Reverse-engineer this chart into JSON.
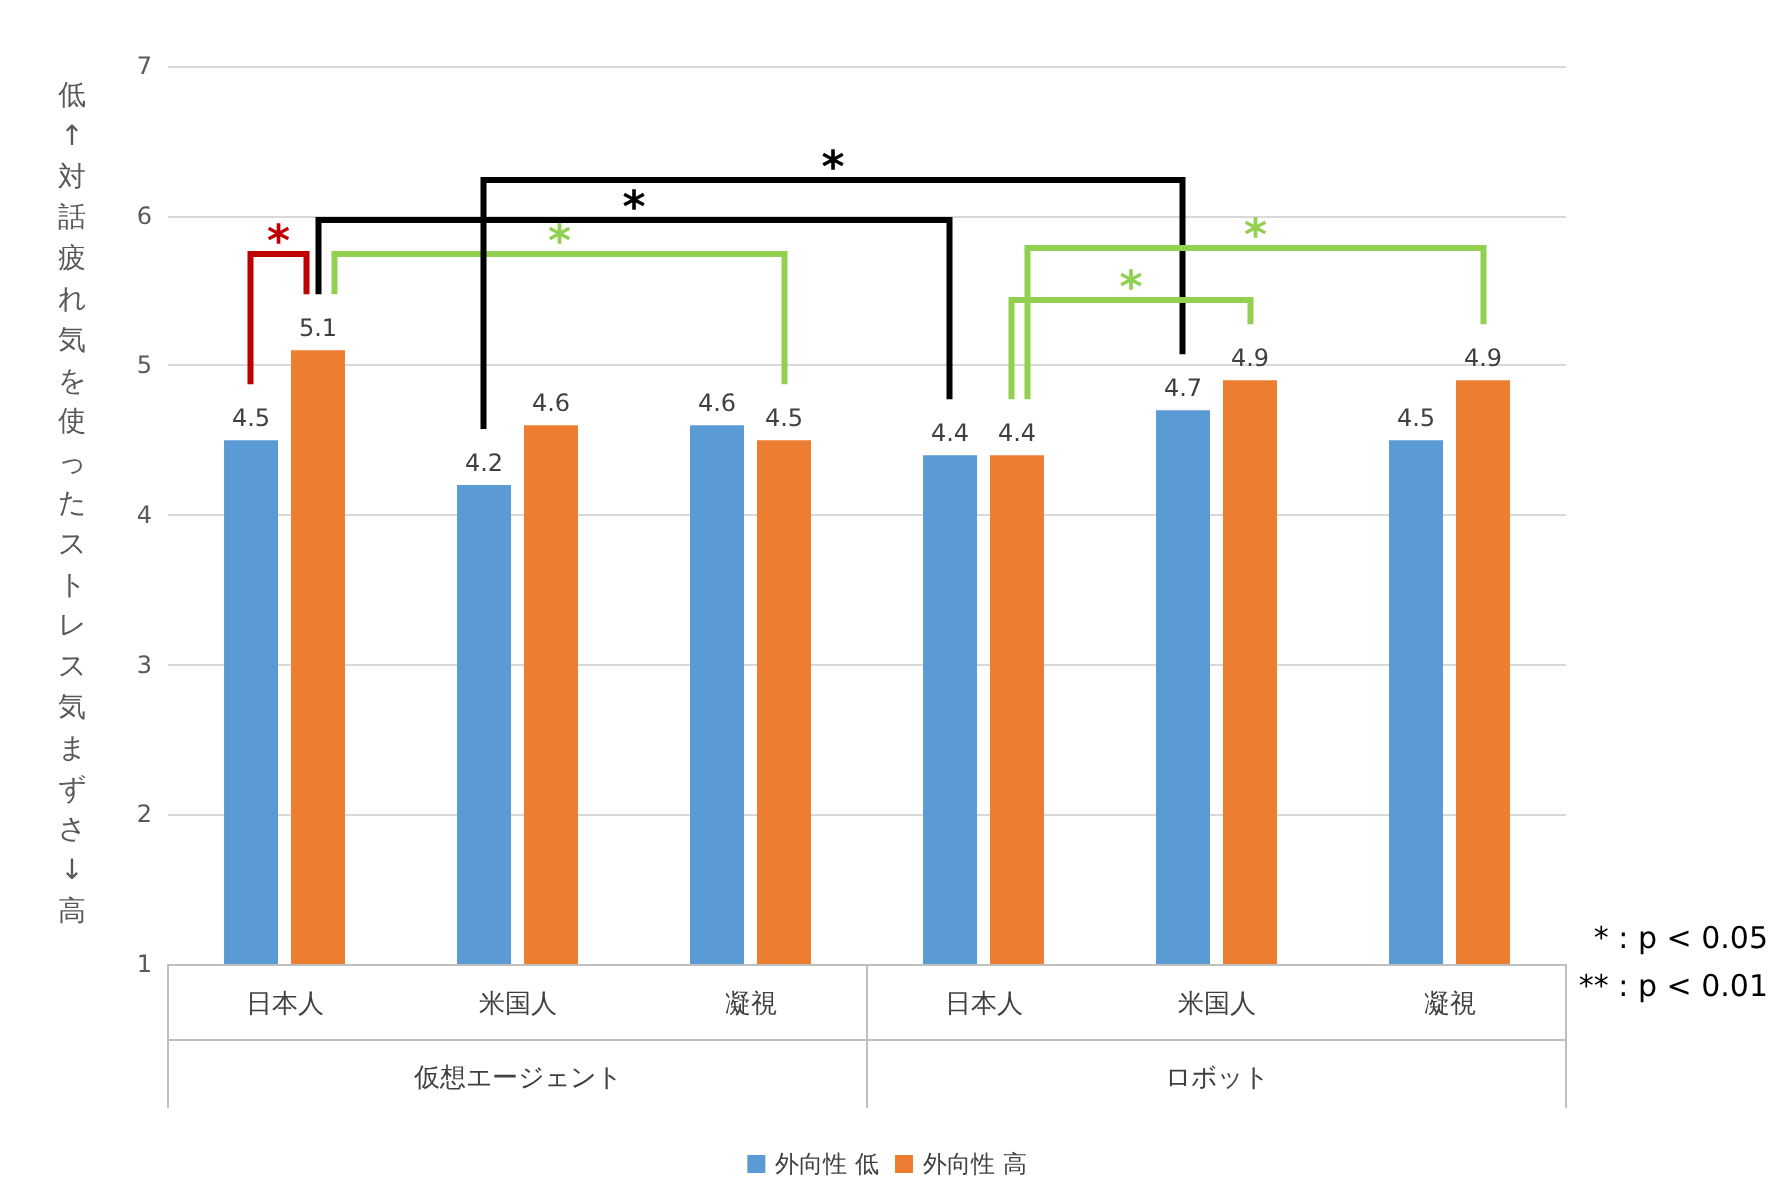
{
  "chart_data": {
    "type": "bar",
    "ylabel": "低↑対話疲れ気を使ったストレス気まずさ↓高",
    "categories": [
      "日本人",
      "米国人",
      "凝視",
      "日本人",
      "米国人",
      "凝視"
    ],
    "series": [
      {
        "name": "外向性 低",
        "color": "#5b9bd5",
        "values": [
          4.5,
          4.2,
          4.6,
          4.4,
          4.7,
          4.5
        ]
      },
      {
        "name": "外向性 高",
        "color": "#ed7d31",
        "values": [
          5.1,
          4.6,
          4.5,
          4.4,
          4.9,
          4.9
        ]
      }
    ],
    "ylim": [
      1,
      7
    ],
    "yticks": [
      1,
      2,
      3,
      4,
      5,
      6,
      7
    ],
    "grid": "y",
    "legend": "bottom",
    "data_labels": true,
    "annotations": [
      "仮想エージェント",
      "ロボット",
      "*",
      "*",
      "*",
      "*",
      "*",
      "*",
      "* : p < 0.05",
      "** : p < 0.01"
    ]
  }
}
